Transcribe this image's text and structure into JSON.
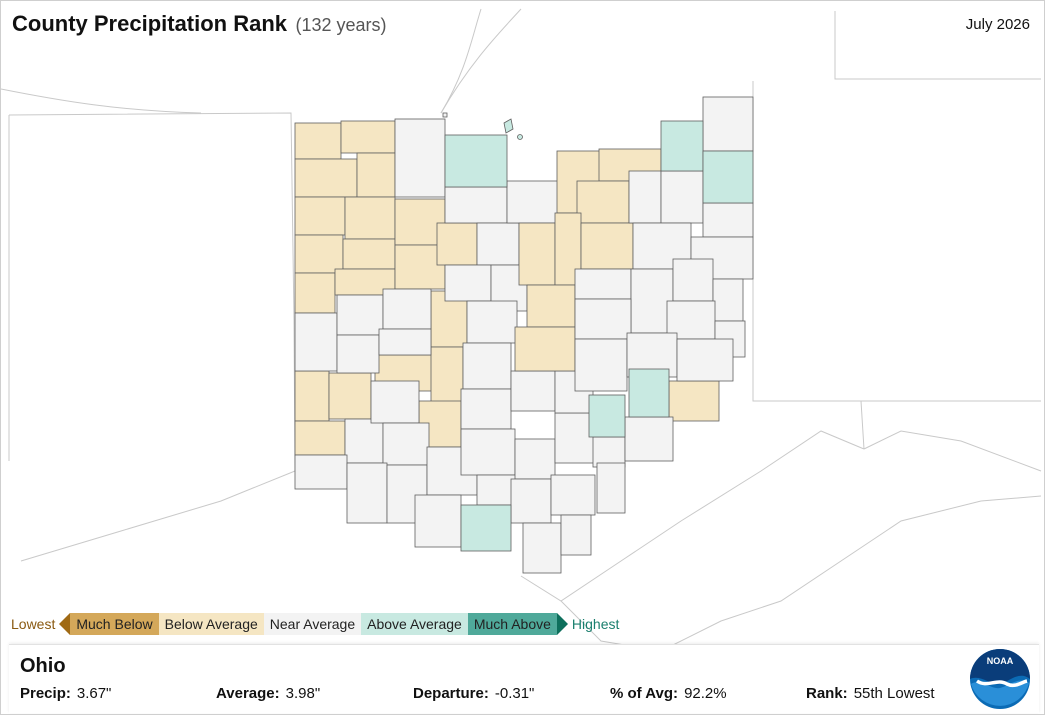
{
  "header": {
    "title": "County Precipitation Rank",
    "subtitle": "(132 years)",
    "date": "July 2026"
  },
  "legend": {
    "low_label": "Lowest",
    "high_label": "Highest",
    "items": [
      {
        "label": "Much Below",
        "color": "#d4a85a"
      },
      {
        "label": "Below Average",
        "color": "#f5e6c3"
      },
      {
        "label": "Near Average",
        "color": "#f3f3f3"
      },
      {
        "label": "Above Average",
        "color": "#c8e9e1"
      },
      {
        "label": "Much Above",
        "color": "#4fa99a"
      }
    ]
  },
  "info": {
    "state": "Ohio",
    "precip_label": "Precip:",
    "precip_value": "3.67\"",
    "average_label": "Average:",
    "average_value": "3.98\"",
    "departure_label": "Departure:",
    "departure_value": "-0.31\"",
    "pct_label": "% of Avg:",
    "pct_value": "92.2%",
    "rank_label": "Rank:",
    "rank_value": "55th Lowest"
  },
  "logo": {
    "text": "NOAA",
    "icon": "noaa-logo"
  },
  "map": {
    "region": "Ohio",
    "category_colors": {
      "below": "#f5e6c3",
      "near": "#f3f3f3",
      "above": "#c8e9e1",
      "stroke": "#5f5f5f"
    }
  }
}
